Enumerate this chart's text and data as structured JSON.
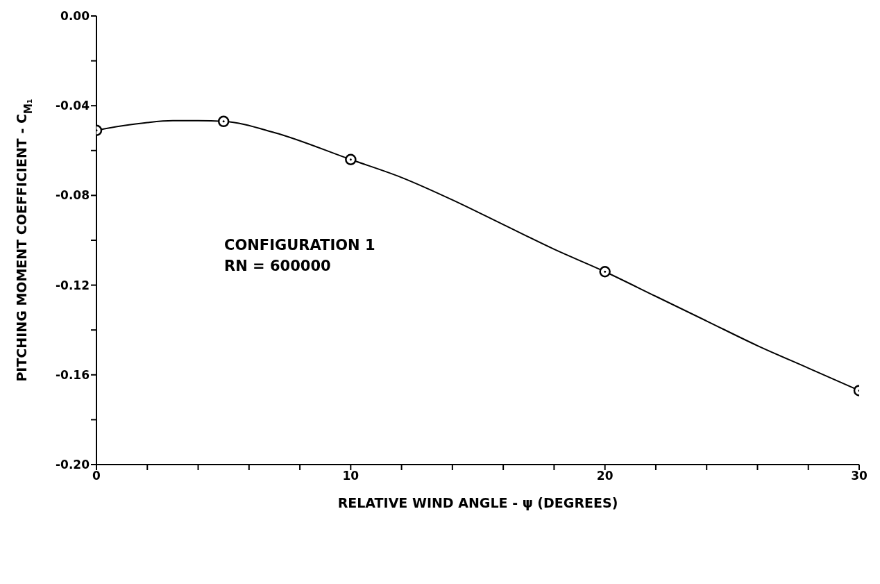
{
  "chart_data": {
    "type": "line",
    "xlabel": "RELATIVE WIND ANGLE - ψ (DEGREES)",
    "ylabel": "PITCHING MOMENT COEFFICIENT - C$_{M₁}$",
    "annotations": [
      "CONFIGURATION 1",
      "RN = 600000"
    ],
    "xlim": [
      0,
      30
    ],
    "ylim": [
      -0.2,
      0
    ],
    "xticks": [
      0,
      {
        "value": 2,
        "label": null
      },
      {
        "value": 4,
        "label": null
      },
      {
        "value": 6,
        "label": null
      },
      {
        "value": 8,
        "label": null
      },
      10,
      {
        "value": 12,
        "label": null
      },
      {
        "value": 14,
        "label": null
      },
      {
        "value": 16,
        "label": null
      },
      {
        "value": 18,
        "label": null
      },
      20,
      {
        "value": 22,
        "label": null
      },
      {
        "value": 24,
        "label": null
      },
      {
        "value": 26,
        "label": null
      },
      {
        "value": 28,
        "label": null
      },
      30
    ],
    "yticks": [
      {
        "value": -0.2,
        "label": "-0.20"
      },
      {
        "value": -0.18,
        "label": null
      },
      {
        "value": -0.16,
        "label": "-0.16"
      },
      {
        "value": -0.14,
        "label": null
      },
      {
        "value": -0.12,
        "label": "-0.12"
      },
      {
        "value": -0.1,
        "label": null
      },
      {
        "value": -0.08,
        "label": "-0.08"
      },
      {
        "value": -0.06,
        "label": null
      },
      {
        "value": -0.04,
        "label": "-0.04"
      },
      {
        "value": -0.02,
        "label": null
      },
      {
        "value": 0,
        "label": "0.00"
      }
    ],
    "grid": false,
    "series": [
      {
        "color": "#000000",
        "marker": "none",
        "x": [
          0,
          1,
          2,
          3,
          4,
          5,
          7,
          10,
          12,
          14,
          16,
          18,
          20,
          22,
          24,
          26,
          28,
          30
        ],
        "values": [
          -0.051,
          -0.049,
          -0.0475,
          -0.0467,
          -0.0467,
          -0.047,
          -0.052,
          -0.064,
          -0.072,
          -0.082,
          -0.093,
          -0.104,
          -0.114,
          -0.125,
          -0.136,
          -0.147,
          -0.157,
          -0.167
        ]
      },
      {
        "type": "scatter",
        "color": "#000000",
        "marker": "circle",
        "x": [
          0,
          5,
          10,
          20,
          30
        ],
        "values": [
          -0.051,
          -0.047,
          -0.064,
          -0.114,
          -0.167
        ]
      }
    ]
  }
}
